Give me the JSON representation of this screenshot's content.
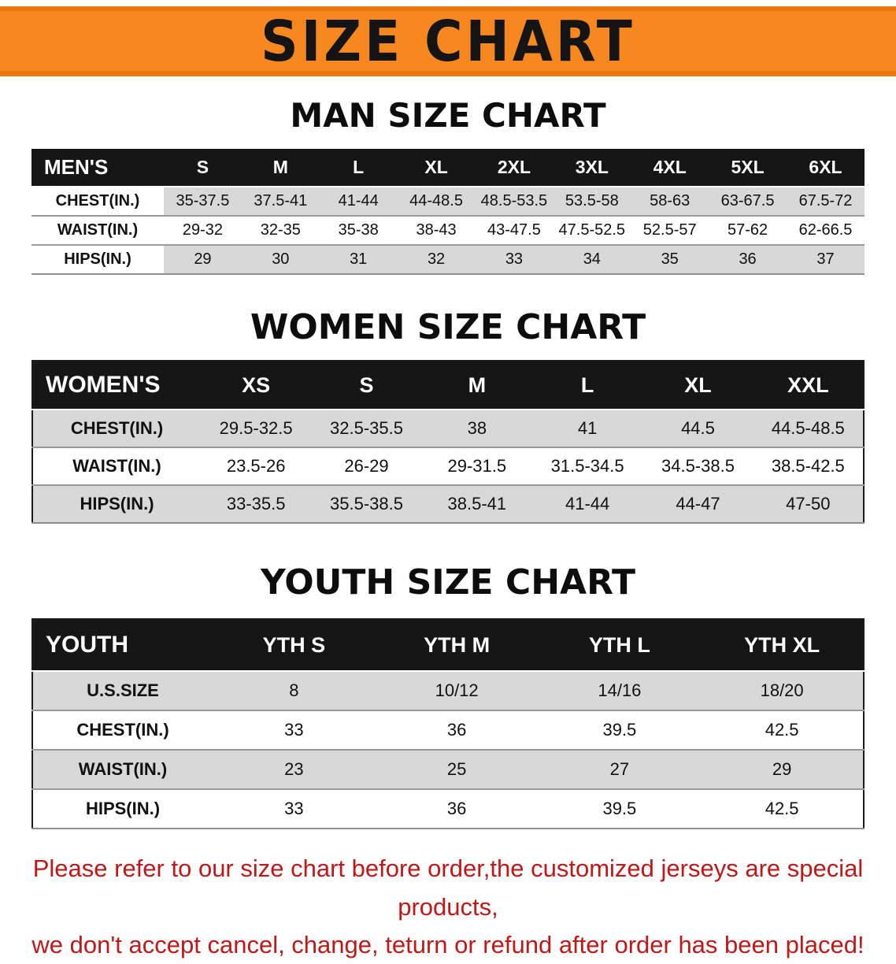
{
  "banner": {
    "title": "SIZE CHART",
    "bg_color": "#f6881f",
    "border_color": "#e87a10"
  },
  "sections": [
    {
      "id": "men",
      "heading": "MAN SIZE CHART",
      "table": {
        "corner": "MEN'S",
        "columns": [
          "S",
          "M",
          "L",
          "XL",
          "2XL",
          "3XL",
          "4XL",
          "5XL",
          "6XL"
        ],
        "rows": [
          {
            "label": "CHEST(IN.)",
            "values": [
              "35-37.5",
              "37.5-41",
              "41-44",
              "44-48.5",
              "48.5-53.5",
              "53.5-58",
              "58-63",
              "63-67.5",
              "67.5-72"
            ]
          },
          {
            "label": "WAIST(IN.)",
            "values": [
              "29-32",
              "32-35",
              "35-38",
              "38-43",
              "43-47.5",
              "47.5-52.5",
              "52.5-57",
              "57-62",
              "62-66.5"
            ]
          },
          {
            "label": "HIPS(IN.)",
            "values": [
              "29",
              "30",
              "31",
              "32",
              "33",
              "34",
              "35",
              "36",
              "37"
            ]
          }
        ]
      }
    },
    {
      "id": "women",
      "heading": "WOMEN SIZE CHART",
      "table": {
        "corner": "WOMEN'S",
        "columns": [
          "XS",
          "S",
          "M",
          "L",
          "XL",
          "XXL"
        ],
        "rows": [
          {
            "label": "CHEST(IN.)",
            "values": [
              "29.5-32.5",
              "32.5-35.5",
              "38",
              "41",
              "44.5",
              "44.5-48.5"
            ]
          },
          {
            "label": "WAIST(IN.)",
            "values": [
              "23.5-26",
              "26-29",
              "29-31.5",
              "31.5-34.5",
              "34.5-38.5",
              "38.5-42.5"
            ]
          },
          {
            "label": "HIPS(IN.)",
            "values": [
              "33-35.5",
              "35.5-38.5",
              "38.5-41",
              "41-44",
              "44-47",
              "47-50"
            ]
          }
        ]
      }
    },
    {
      "id": "youth",
      "heading": "YOUTH SIZE CHART",
      "table": {
        "corner": "YOUTH",
        "columns": [
          "YTH S",
          "YTH M",
          "YTH L",
          "YTH XL"
        ],
        "rows": [
          {
            "label": "U.S.SIZE",
            "values": [
              "8",
              "10/12",
              "14/16",
              "18/20"
            ]
          },
          {
            "label": "CHEST(IN.)",
            "values": [
              "33",
              "36",
              "39.5",
              "42.5"
            ]
          },
          {
            "label": "WAIST(IN.)",
            "values": [
              "23",
              "25",
              "27",
              "29"
            ]
          },
          {
            "label": "HIPS(IN.)",
            "values": [
              "33",
              "36",
              "39.5",
              "42.5"
            ]
          }
        ]
      }
    }
  ],
  "disclaimer": {
    "color": "#c21717",
    "line1": "Please refer to our size chart before order,the customized jerseys are special products,",
    "line2": "we don't accept cancel, change, teturn or refund after order has been placed!"
  }
}
